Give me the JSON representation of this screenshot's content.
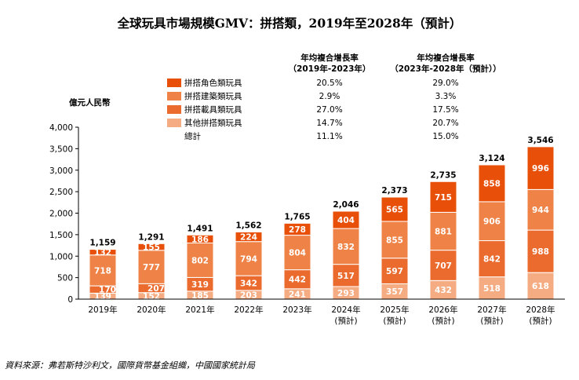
{
  "title": "全球玩具市場規模GMV：拼搭類，2019年至2028年（預計）",
  "source": "資料來源：弗若斯特沙利文，國際貨幣基金組織，中國國家統計局",
  "cagr_header_1": [
    "年均複合增長率",
    "（2019年-2023年）"
  ],
  "cagr_header_2": [
    "年均複合增長率",
    "（2023年-2028年（預計））"
  ],
  "colors": {
    "role_play": "#E8500A",
    "construction": "#EF8347",
    "vehicle": "#EB6B2E",
    "other": "#F5AC82"
  },
  "legend": [
    {
      "label": "拼搭角色類玩具",
      "color_key": "role_play",
      "cagr1": "20.5%",
      "cagr2": "29.0%"
    },
    {
      "label": "拼搭建築類玩具",
      "color_key": "construction",
      "cagr1": "2.9%",
      "cagr2": "3.3%"
    },
    {
      "label": "拼搭載具類玩具",
      "color_key": "vehicle",
      "cagr1": "27.0%",
      "cagr2": "17.5%"
    },
    {
      "label": "其他拼搭類玩具",
      "color_key": "other",
      "cagr1": "14.7%",
      "cagr2": "20.7%"
    },
    {
      "label": "總計",
      "color_key": "",
      "cagr1": "11.1%",
      "cagr2": "15.0%"
    }
  ],
  "chart_data": {
    "type": "bar",
    "stacked": true,
    "ylabel": "億元人民幣",
    "ylim": [
      0,
      4000
    ],
    "yticks": [
      "0",
      "500",
      "1,000",
      "1,500",
      "2,000",
      "2,500",
      "3,000",
      "3,500",
      "4,000"
    ],
    "ytick_values": [
      0,
      500,
      1000,
      1500,
      2000,
      2500,
      3000,
      3500,
      4000
    ],
    "categories": [
      [
        "2019年"
      ],
      [
        "2020年"
      ],
      [
        "2021年"
      ],
      [
        "2022年"
      ],
      [
        "2023年"
      ],
      [
        "2024年",
        "(預計)"
      ],
      [
        "2025年",
        "(預計)"
      ],
      [
        "2026年",
        "(預計)"
      ],
      [
        "2027年",
        "(預計)"
      ],
      [
        "2028年",
        "(預計)"
      ]
    ],
    "series": [
      {
        "name": "其他拼搭類玩具",
        "color_key": "other",
        "values": [
          139,
          152,
          185,
          203,
          241,
          293,
          357,
          432,
          518,
          618
        ]
      },
      {
        "name": "拼搭載具類玩具",
        "color_key": "vehicle",
        "values": [
          170,
          207,
          319,
          342,
          442,
          517,
          597,
          707,
          842,
          988
        ]
      },
      {
        "name": "拼搭建築類玩具",
        "color_key": "construction",
        "values": [
          718,
          777,
          802,
          794,
          804,
          832,
          855,
          881,
          906,
          944
        ]
      },
      {
        "name": "拼搭角色類玩具",
        "color_key": "role_play",
        "values": [
          132,
          155,
          186,
          224,
          278,
          404,
          565,
          715,
          858,
          996
        ]
      }
    ],
    "totals": [
      "1,159",
      "1,291",
      "1,491",
      "1,562",
      "1,765",
      "2,046",
      "2,373",
      "2,735",
      "3,124",
      "3,546"
    ]
  }
}
